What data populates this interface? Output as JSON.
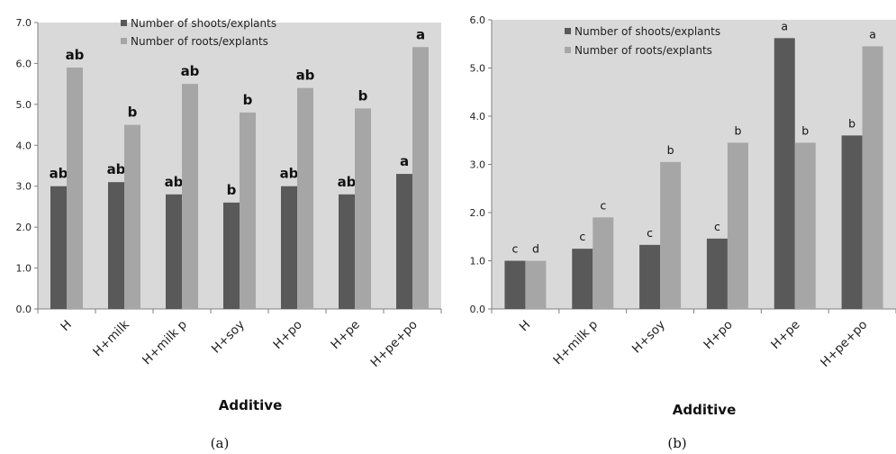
{
  "chart_data": [
    {
      "type": "bar",
      "panel_label": "(a)",
      "xlabel": "Additive",
      "ylabel": "",
      "ylim": [
        0,
        7
      ],
      "yticks": [
        "0.0",
        "1.0",
        "2.0",
        "3.0",
        "4.0",
        "5.0",
        "6.0",
        "7.0"
      ],
      "categories": [
        "H",
        "H+milk",
        "H+milk p",
        "H+soy",
        "H+po",
        "H+pe",
        "H+pe+po"
      ],
      "legend_position": "top-center",
      "grid": false,
      "series": [
        {
          "name": "Number of shoots/explants",
          "color": "#595959",
          "values": [
            3.0,
            3.1,
            2.8,
            2.6,
            3.0,
            2.8,
            3.3
          ],
          "labels": [
            "ab",
            "ab",
            "ab",
            "b",
            "ab",
            "ab",
            "a"
          ]
        },
        {
          "name": "Number of roots/explants",
          "color": "#a6a6a6",
          "values": [
            5.9,
            4.5,
            5.5,
            4.8,
            5.4,
            4.9,
            6.4
          ],
          "labels": [
            "ab",
            "b",
            "ab",
            "b",
            "ab",
            "b",
            "a"
          ]
        }
      ]
    },
    {
      "type": "bar",
      "panel_label": "(b)",
      "xlabel": "Additive",
      "ylabel": "",
      "ylim": [
        0,
        6
      ],
      "yticks": [
        "0.0",
        "1.0",
        "2.0",
        "3.0",
        "4.0",
        "5.0",
        "6.0"
      ],
      "categories": [
        "H",
        "H+milk p",
        "H+soy",
        "H+po",
        "H+pe",
        "H+pe+po"
      ],
      "legend_position": "top-center",
      "grid": false,
      "series": [
        {
          "name": "Number of shoots/explants",
          "color": "#595959",
          "values": [
            1.0,
            1.25,
            1.33,
            1.46,
            5.62,
            3.6
          ],
          "labels": [
            "c",
            "c",
            "c",
            "c",
            "a",
            "b"
          ]
        },
        {
          "name": "Number of roots/explants",
          "color": "#a6a6a6",
          "values": [
            1.0,
            1.9,
            3.05,
            3.45,
            3.45,
            5.45
          ],
          "labels": [
            "d",
            "c",
            "b",
            "b",
            "b",
            "a"
          ]
        }
      ]
    }
  ]
}
